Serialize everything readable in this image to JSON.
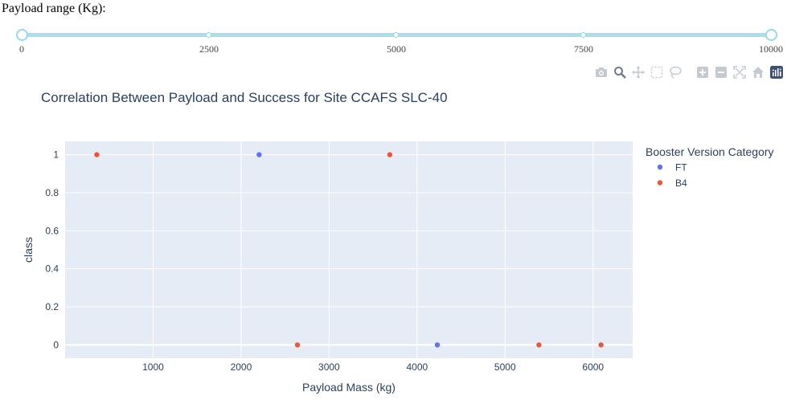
{
  "slider": {
    "label": "Payload range (Kg):",
    "min": 0,
    "max": 10000,
    "value": [
      0,
      10000
    ],
    "marks": [
      "0",
      "2500",
      "5000",
      "7500",
      "10000"
    ],
    "accent_color": "#96d8ee"
  },
  "modebar": {
    "icons": [
      "camera-icon",
      "zoom-icon",
      "pan-icon",
      "box-select-icon",
      "lasso-select-icon",
      "zoom-in-icon",
      "zoom-out-icon",
      "autoscale-icon",
      "reset-axes-icon",
      "plotly-logo-icon"
    ]
  },
  "chart_data": {
    "type": "scatter",
    "title": "Correlation Between Payload and Success for Site CCAFS SLC-40",
    "xlabel": "Payload Mass (kg)",
    "ylabel": "class",
    "xlim": [
      0,
      6450
    ],
    "ylim": [
      -0.07,
      1.07
    ],
    "xticks": [
      1000,
      2000,
      3000,
      4000,
      5000,
      6000
    ],
    "yticks": [
      0,
      0.2,
      0.4,
      0.6,
      0.8,
      1
    ],
    "grid": true,
    "legend_title": "Booster Version Category",
    "legend_position": "right",
    "series": [
      {
        "name": "FT",
        "color": "#636efa",
        "x": [
          2205,
          4230
        ],
        "y": [
          1,
          0
        ]
      },
      {
        "name": "B4",
        "color": "#ef553b",
        "x": [
          360,
          2640,
          3690,
          5385,
          6090
        ],
        "y": [
          1,
          0,
          1,
          0,
          0
        ]
      }
    ],
    "plot_bg": "#e5ecf6"
  }
}
